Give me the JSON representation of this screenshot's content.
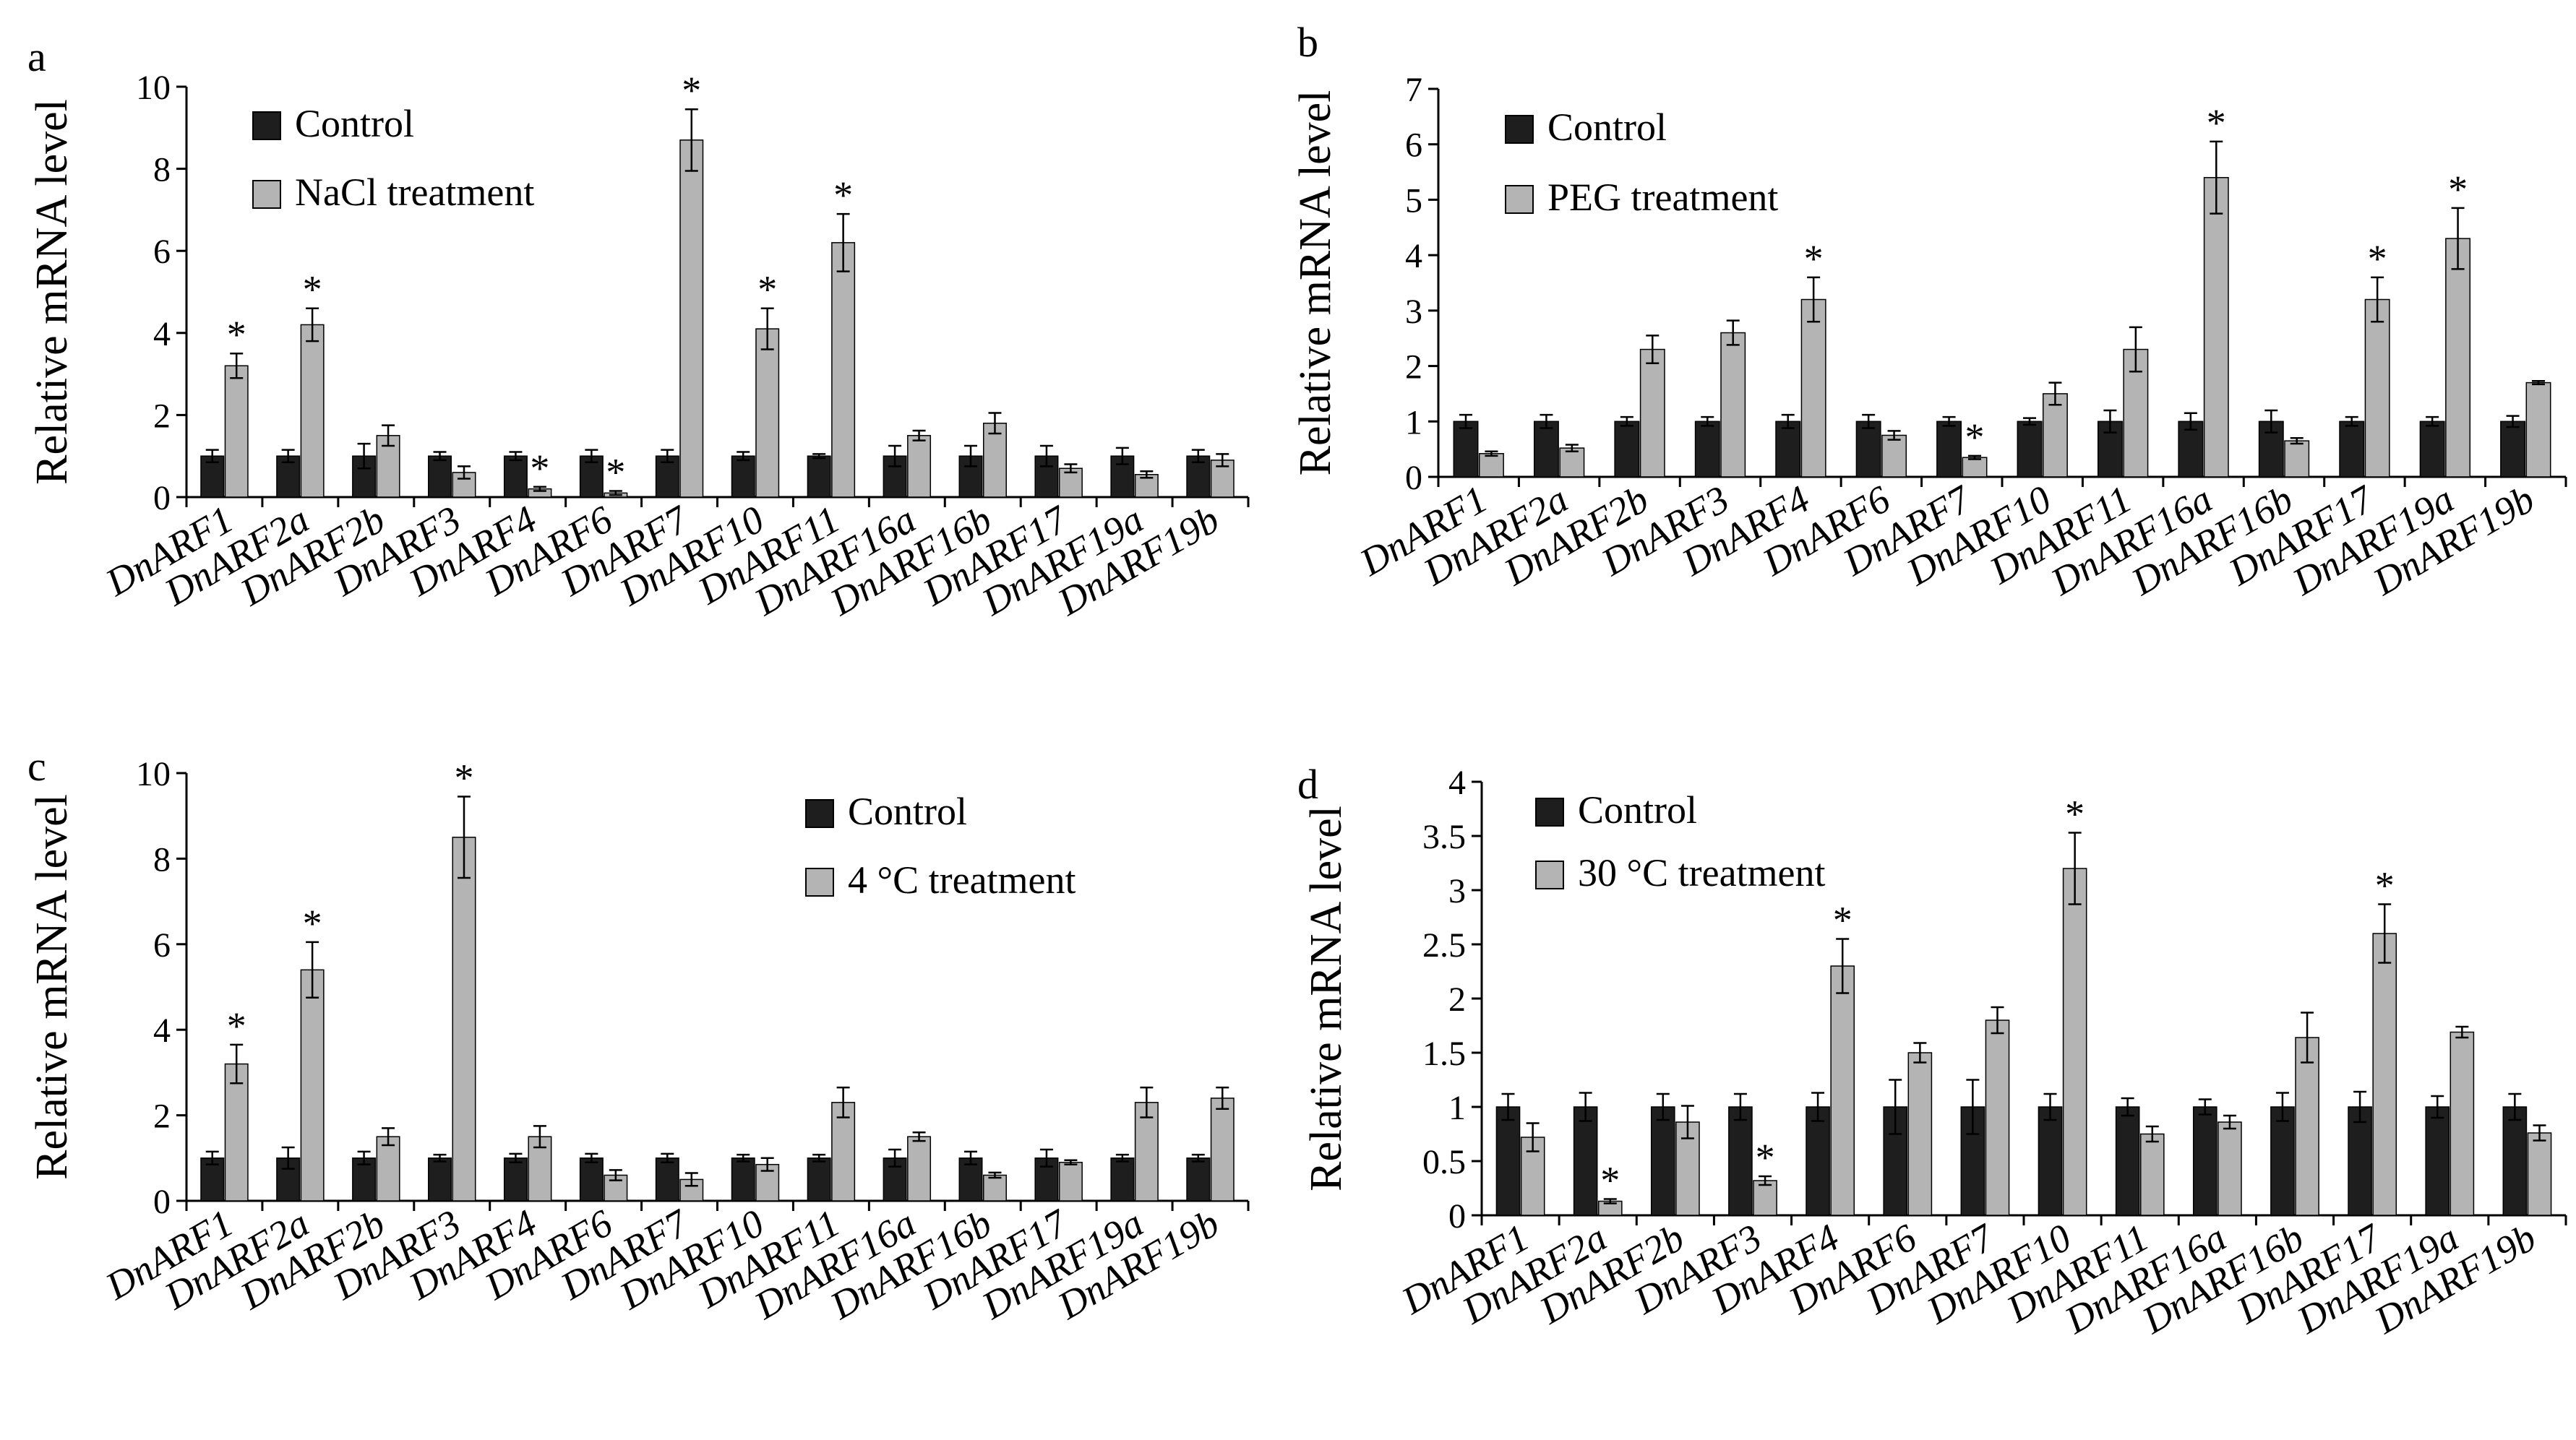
{
  "colors": {
    "control": "#1e1e1e",
    "treatment": "#b4b4b4",
    "axis": "#000000"
  },
  "chart_data": [
    {
      "panel": "a",
      "type": "bar",
      "ylabel": "Relative mRNA level",
      "ylim": [
        0,
        10
      ],
      "yticks": [
        0,
        2,
        4,
        6,
        8,
        10
      ],
      "ytick_labels": [
        "0",
        "2",
        "4",
        "6",
        "8",
        "10"
      ],
      "legend_position": "top-left",
      "categories": [
        "DnARF1",
        "DnARF2a",
        "DnARF2b",
        "DnARF3",
        "DnARF4",
        "DnARF6",
        "DnARF7",
        "DnARF10",
        "DnARF11",
        "DnARF16a",
        "DnARF16b",
        "DnARF17",
        "DnARF19a",
        "DnARF19b"
      ],
      "series": [
        {
          "name": "Control",
          "values": [
            1.0,
            1.0,
            1.0,
            1.0,
            1.0,
            1.0,
            1.0,
            1.0,
            1.0,
            1.0,
            1.0,
            1.0,
            1.0,
            1.0
          ],
          "errors": [
            0.15,
            0.15,
            0.3,
            0.1,
            0.1,
            0.15,
            0.15,
            0.1,
            0.05,
            0.25,
            0.25,
            0.25,
            0.2,
            0.15
          ]
        },
        {
          "name": "NaCl treatment",
          "values": [
            3.2,
            4.2,
            1.5,
            0.6,
            0.2,
            0.1,
            8.7,
            4.1,
            6.2,
            1.5,
            1.8,
            0.7,
            0.55,
            0.9
          ],
          "errors": [
            0.3,
            0.4,
            0.25,
            0.15,
            0.05,
            0.05,
            0.75,
            0.5,
            0.7,
            0.12,
            0.25,
            0.1,
            0.08,
            0.15
          ]
        }
      ],
      "significant": [
        true,
        true,
        false,
        false,
        true,
        true,
        true,
        true,
        true,
        false,
        false,
        false,
        false,
        false
      ],
      "significance_marker": "*"
    },
    {
      "panel": "b",
      "type": "bar",
      "ylabel": "Relative mRNA level",
      "ylim": [
        0,
        7
      ],
      "yticks": [
        0,
        1,
        2,
        3,
        4,
        5,
        6,
        7
      ],
      "ytick_labels": [
        "0",
        "1",
        "2",
        "3",
        "4",
        "5",
        "6",
        "7"
      ],
      "legend_position": "top-left",
      "categories": [
        "DnARF1",
        "DnARF2a",
        "DnARF2b",
        "DnARF3",
        "DnARF4",
        "DnARF6",
        "DnARF7",
        "DnARF10",
        "DnARF11",
        "DnARF16a",
        "DnARF16b",
        "DnARF17",
        "DnARF19a",
        "DnARF19b"
      ],
      "series": [
        {
          "name": "Control",
          "values": [
            1.0,
            1.0,
            1.0,
            1.0,
            1.0,
            1.0,
            1.0,
            1.0,
            1.0,
            1.0,
            1.0,
            1.0,
            1.0,
            1.0
          ],
          "errors": [
            0.12,
            0.12,
            0.08,
            0.08,
            0.12,
            0.12,
            0.08,
            0.06,
            0.2,
            0.15,
            0.2,
            0.08,
            0.08,
            0.1
          ]
        },
        {
          "name": "PEG treatment",
          "values": [
            0.42,
            0.52,
            2.3,
            2.6,
            3.2,
            0.75,
            0.35,
            1.5,
            2.3,
            5.4,
            0.65,
            3.2,
            4.3,
            1.7
          ],
          "errors": [
            0.04,
            0.06,
            0.25,
            0.22,
            0.4,
            0.08,
            0.03,
            0.2,
            0.4,
            0.65,
            0.05,
            0.4,
            0.55,
            0.03
          ]
        }
      ],
      "significant": [
        false,
        false,
        false,
        false,
        true,
        false,
        true,
        false,
        false,
        true,
        false,
        true,
        true,
        false
      ],
      "significance_marker": "*"
    },
    {
      "panel": "c",
      "type": "bar",
      "ylabel": "Relative mRNA level",
      "ylim": [
        0,
        10
      ],
      "yticks": [
        0,
        2,
        4,
        6,
        8,
        10
      ],
      "ytick_labels": [
        "0",
        "2",
        "4",
        "6",
        "8",
        "10"
      ],
      "legend_position": "top-right",
      "categories": [
        "DnARF1",
        "DnARF2a",
        "DnARF2b",
        "DnARF3",
        "DnARF4",
        "DnARF6",
        "DnARF7",
        "DnARF10",
        "DnARF11",
        "DnARF16a",
        "DnARF16b",
        "DnARF17",
        "DnARF19a",
        "DnARF19b"
      ],
      "series": [
        {
          "name": "Control",
          "values": [
            1.0,
            1.0,
            1.0,
            1.0,
            1.0,
            1.0,
            1.0,
            1.0,
            1.0,
            1.0,
            1.0,
            1.0,
            1.0,
            1.0
          ],
          "errors": [
            0.15,
            0.25,
            0.15,
            0.08,
            0.1,
            0.1,
            0.1,
            0.08,
            0.08,
            0.2,
            0.15,
            0.2,
            0.08,
            0.08
          ]
        },
        {
          "name": "4 °C  treatment",
          "values": [
            3.2,
            5.4,
            1.5,
            8.5,
            1.5,
            0.6,
            0.5,
            0.85,
            2.3,
            1.5,
            0.6,
            0.9,
            2.3,
            2.4
          ],
          "errors": [
            0.45,
            0.65,
            0.2,
            0.95,
            0.25,
            0.12,
            0.15,
            0.15,
            0.35,
            0.1,
            0.06,
            0.05,
            0.35,
            0.25
          ]
        }
      ],
      "significant": [
        true,
        true,
        false,
        true,
        false,
        false,
        false,
        false,
        false,
        false,
        false,
        false,
        false,
        false
      ],
      "significance_marker": "*"
    },
    {
      "panel": "d",
      "type": "bar",
      "ylabel": "Relative mRNA level",
      "ylim": [
        0,
        4
      ],
      "yticks": [
        0,
        0.5,
        1,
        1.5,
        2,
        2.5,
        3,
        3.5,
        4
      ],
      "ytick_labels": [
        "0",
        "0.5",
        "1",
        "1.5",
        "2",
        "2.5",
        "3",
        "3.5",
        "4"
      ],
      "legend_position": "top-left",
      "categories": [
        "DnARF1",
        "DnARF2a",
        "DnARF2b",
        "DnARF3",
        "DnARF4",
        "DnARF6",
        "DnARF7",
        "DnARF10",
        "DnARF11",
        "DnARF16a",
        "DnARF16b",
        "DnARF17",
        "DnARF19a",
        "DnARF19b"
      ],
      "series": [
        {
          "name": "Control",
          "values": [
            1.0,
            1.0,
            1.0,
            1.0,
            1.0,
            1.0,
            1.0,
            1.0,
            1.0,
            1.0,
            1.0,
            1.0,
            1.0,
            1.0
          ],
          "errors": [
            0.12,
            0.13,
            0.12,
            0.12,
            0.13,
            0.25,
            0.25,
            0.12,
            0.08,
            0.07,
            0.13,
            0.14,
            0.1,
            0.12
          ]
        },
        {
          "name": "30 °C  treatment",
          "values": [
            0.72,
            0.13,
            0.86,
            0.32,
            2.3,
            1.5,
            1.8,
            3.2,
            0.75,
            0.86,
            1.64,
            2.6,
            1.69,
            0.76
          ],
          "errors": [
            0.13,
            0.02,
            0.15,
            0.04,
            0.25,
            0.09,
            0.12,
            0.33,
            0.07,
            0.06,
            0.23,
            0.27,
            0.05,
            0.07
          ]
        }
      ],
      "significant": [
        false,
        true,
        false,
        true,
        true,
        false,
        false,
        true,
        false,
        false,
        false,
        true,
        false,
        false
      ],
      "significance_marker": "*"
    }
  ]
}
